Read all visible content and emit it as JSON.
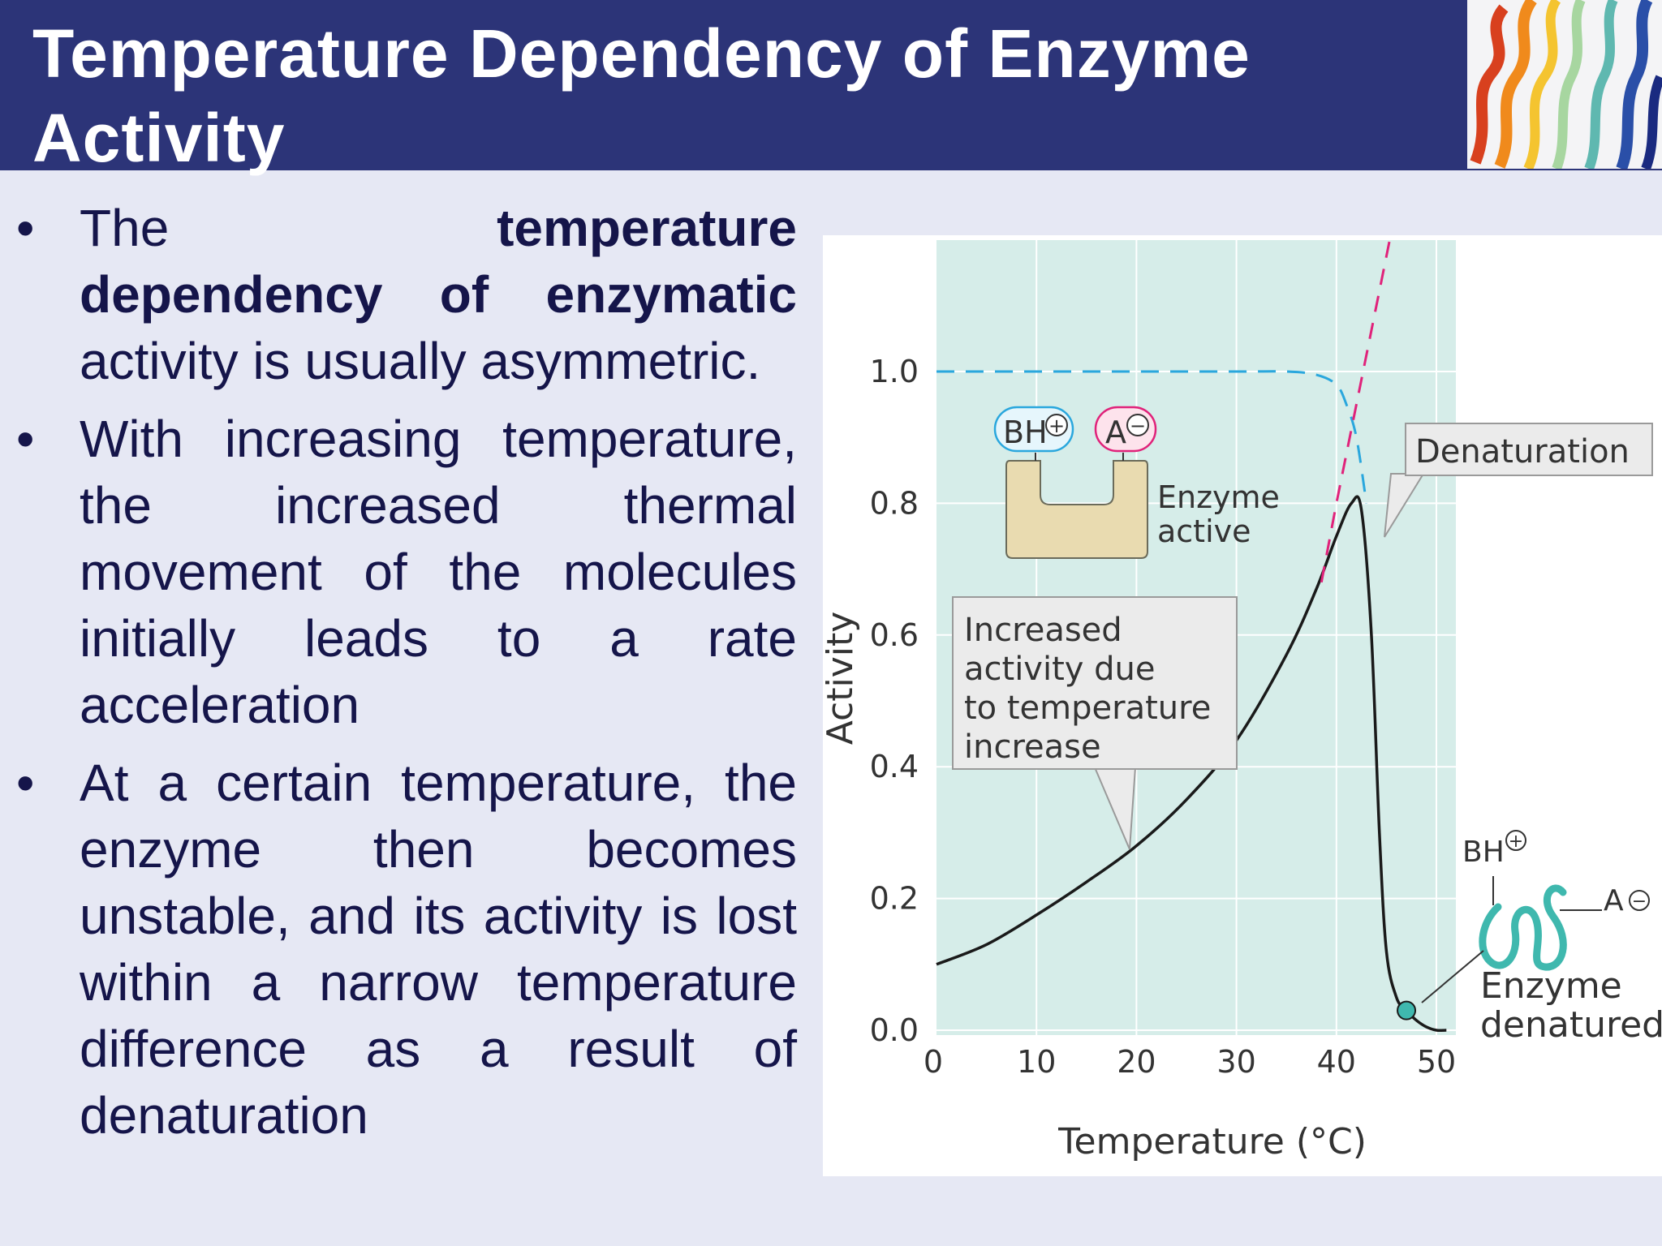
{
  "slide": {
    "title": "Temperature Dependency of Enzyme Activity",
    "bullet_symbol": "•",
    "bullets": [
      {
        "t1": "The ",
        "t2": "temperature dependency of enzymatic",
        "t3": " activity is usually asymmetric."
      },
      {
        "text": "With increasing temperature, the increased thermal movement of the molecules initially leads to a rate acceleration"
      },
      {
        "text": "At a certain temperature, the enzyme then becomes unstable, and its activity is lost within a narrow temperature difference as a result of denaturation"
      }
    ]
  },
  "figure": {
    "labels": {
      "active_bh": "BH",
      "active_a": "A",
      "enzyme_active_1": "Enzyme",
      "enzyme_active_2": "active",
      "denaturation": "Denaturation",
      "increased_1": "Increased",
      "increased_2": "activity due",
      "increased_3": "to temperature",
      "increased_4": "increase",
      "denatured_bh": "BH",
      "denatured_a": "A",
      "enzyme_denatured_1": "Enzyme",
      "enzyme_denatured_2": "denatured",
      "plus": "+",
      "minus": "−"
    },
    "colors": {
      "plot_bg": "#d6ede9",
      "curve": "#1a1a1a",
      "dashed_blue": "#2aa7dd",
      "dashed_magenta": "#e0227a",
      "teal": "#3fb8ae",
      "enzyme_fill": "#e9dbb0"
    }
  },
  "chart_data": {
    "type": "line",
    "xlabel": "Temperature (°C)",
    "ylabel": "Activity",
    "xlim": [
      0,
      52
    ],
    "ylim": [
      0,
      1.1
    ],
    "x_ticks": [
      "0",
      "10",
      "20",
      "30",
      "40",
      "50"
    ],
    "x_tick_values": [
      0,
      10,
      20,
      30,
      40,
      50
    ],
    "y_ticks": [
      "0.0",
      "0.2",
      "0.4",
      "0.6",
      "0.8",
      "1.0"
    ],
    "y_tick_values": [
      0,
      0.2,
      0.4,
      0.6,
      0.8,
      1.0
    ],
    "grid": true,
    "series": [
      {
        "style": "solid",
        "x": [
          0,
          5,
          10,
          15,
          20,
          25,
          30,
          35,
          38,
          40,
          41.5,
          42.5,
          43.5,
          44.3,
          45,
          46,
          47,
          48,
          49,
          50,
          51
        ],
        "y": [
          0.1,
          0.13,
          0.175,
          0.225,
          0.28,
          0.35,
          0.44,
          0.57,
          0.67,
          0.75,
          0.8,
          0.79,
          0.6,
          0.3,
          0.12,
          0.05,
          0.03,
          0.015,
          0.005,
          0.0,
          0.0
        ]
      },
      {
        "style": "dashed",
        "x": [
          0,
          10,
          20,
          30,
          35,
          38,
          40,
          41,
          42,
          43
        ],
        "y": [
          1.0,
          1.0,
          1.0,
          1.0,
          1.0,
          0.995,
          0.98,
          0.95,
          0.9,
          0.8
        ]
      },
      {
        "style": "dashed",
        "x": [
          38.5,
          40,
          42,
          44,
          46
        ],
        "y": [
          0.68,
          0.8,
          0.95,
          1.1,
          1.25
        ]
      }
    ],
    "markers": [
      {
        "x": 47,
        "y": 0.03
      }
    ]
  }
}
